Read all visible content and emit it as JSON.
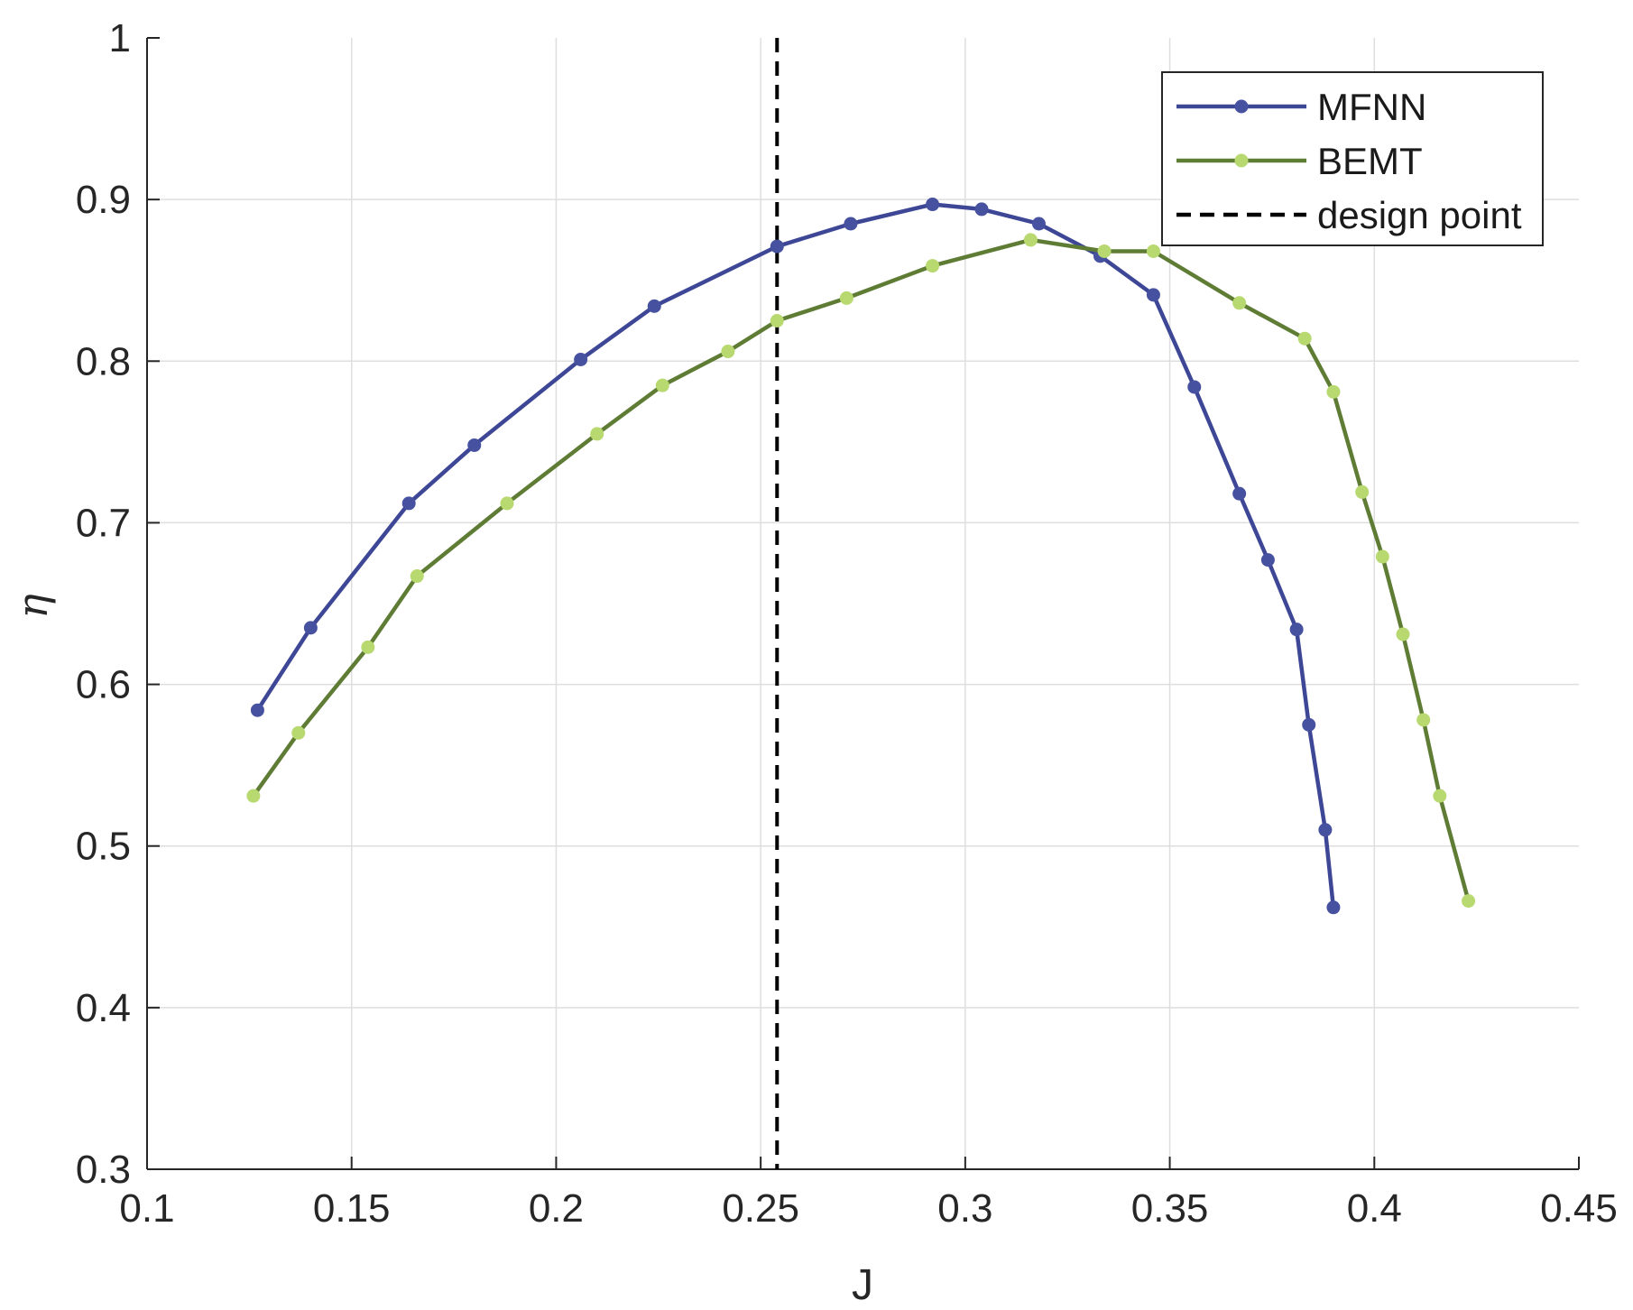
{
  "chart_data": {
    "type": "line",
    "xlabel": "J",
    "ylabel": "η",
    "xlim": [
      0.1,
      0.45
    ],
    "ylim": [
      0.3,
      1.0
    ],
    "xticks": [
      0.1,
      0.15,
      0.2,
      0.25,
      0.3,
      0.35,
      0.4,
      0.45
    ],
    "yticks": [
      0.3,
      0.4,
      0.5,
      0.6,
      0.7,
      0.8,
      0.9,
      1.0
    ],
    "xtick_labels": [
      "0.1",
      "0.15",
      "0.2",
      "0.25",
      "0.3",
      "0.35",
      "0.4",
      "0.45"
    ],
    "ytick_labels": [
      "0.3",
      "0.4",
      "0.5",
      "0.6",
      "0.7",
      "0.8",
      "0.9",
      "1"
    ],
    "grid": true,
    "legend_position": "top-right",
    "series": [
      {
        "name": "MFNN",
        "line_color": "#3d4796",
        "marker_color": "#46519f",
        "x": [
          0.127,
          0.14,
          0.164,
          0.18,
          0.206,
          0.224,
          0.254,
          0.272,
          0.292,
          0.304,
          0.318,
          0.333,
          0.346,
          0.356,
          0.367,
          0.374,
          0.381,
          0.384,
          0.388,
          0.39
        ],
        "y": [
          0.584,
          0.635,
          0.712,
          0.748,
          0.801,
          0.834,
          0.871,
          0.885,
          0.897,
          0.894,
          0.885,
          0.865,
          0.841,
          0.784,
          0.718,
          0.677,
          0.634,
          0.575,
          0.51,
          0.462
        ]
      },
      {
        "name": "BEMT",
        "line_color": "#5f7c35",
        "marker_color": "#b8d870",
        "x": [
          0.126,
          0.137,
          0.154,
          0.166,
          0.188,
          0.21,
          0.226,
          0.242,
          0.254,
          0.271,
          0.292,
          0.316,
          0.334,
          0.346,
          0.367,
          0.383,
          0.39,
          0.397,
          0.402,
          0.407,
          0.412,
          0.416,
          0.423
        ],
        "y": [
          0.531,
          0.57,
          0.623,
          0.667,
          0.712,
          0.755,
          0.785,
          0.806,
          0.825,
          0.839,
          0.859,
          0.875,
          0.868,
          0.868,
          0.836,
          0.814,
          0.781,
          0.719,
          0.679,
          0.631,
          0.578,
          0.531,
          0.466
        ]
      }
    ],
    "reference_lines": [
      {
        "name": "design point",
        "orientation": "vertical",
        "x": 0.254,
        "style": "dashed",
        "color": "#000000"
      }
    ],
    "legend_entries": [
      "MFNN",
      "BEMT",
      "design point"
    ]
  }
}
